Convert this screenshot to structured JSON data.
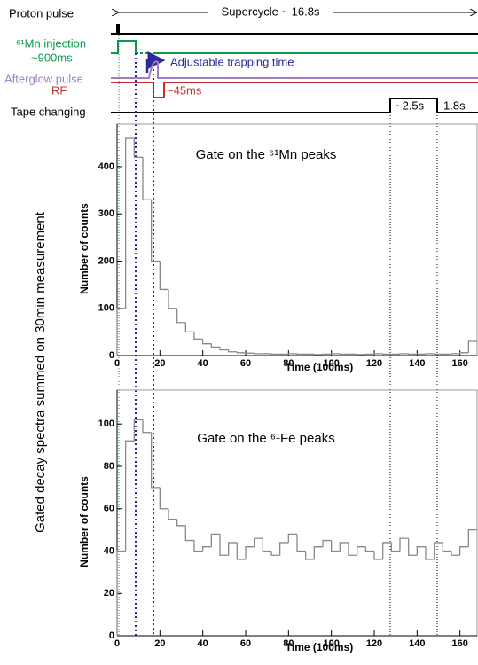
{
  "diagram": {
    "proton": "Proton pulse",
    "supercycle": "Supercycle ~ 16.8s",
    "injection": "⁶¹Mn injection",
    "injection_time": "~900ms",
    "trapping": "Adjustable trapping time",
    "afterglow": "Afterglow pulse",
    "rf": "RF",
    "rf_time": "~45ms",
    "tape": "Tape changing",
    "tape_time": "~2.5s",
    "tape_time2": "1.8s",
    "side_label": "Gated decay spectra summed on 30min measurement"
  },
  "chart_data": [
    {
      "type": "histogram",
      "title": "Gate on the ⁶¹Mn peaks",
      "x_label": "Time (100ms)",
      "y_label": "Number of counts",
      "color": "#888888",
      "bins": [
        0,
        4,
        8,
        12,
        16,
        20,
        24,
        28,
        32,
        36,
        40,
        44,
        48,
        52,
        56,
        60,
        64,
        68,
        72,
        76,
        80,
        84,
        88,
        92,
        96,
        100,
        104,
        108,
        112,
        116,
        120,
        124,
        128,
        132,
        136,
        140,
        144,
        148,
        152,
        156,
        160,
        164,
        168
      ],
      "values": [
        100,
        460,
        420,
        330,
        200,
        140,
        100,
        70,
        50,
        35,
        25,
        18,
        12,
        8,
        6,
        5,
        4,
        4,
        3,
        3,
        4,
        3,
        3,
        2,
        3,
        4,
        3,
        3,
        2,
        3,
        4,
        3,
        3,
        4,
        3,
        3,
        4,
        3,
        3,
        4,
        6,
        30
      ],
      "xlim": [
        0,
        168
      ],
      "ylim": [
        0,
        490
      ],
      "xticks": [
        0,
        20,
        40,
        60,
        80,
        100,
        120,
        140,
        160
      ],
      "yticks": [
        0,
        100,
        200,
        300,
        400
      ]
    },
    {
      "type": "histogram",
      "title": "Gate on the ⁶¹Fe peaks",
      "x_label": "Time (100ms)",
      "y_label": "Number of counts",
      "color": "#888888",
      "bins": [
        0,
        4,
        8,
        12,
        16,
        20,
        24,
        28,
        32,
        36,
        40,
        44,
        48,
        52,
        56,
        60,
        64,
        68,
        72,
        76,
        80,
        84,
        88,
        92,
        96,
        100,
        104,
        108,
        112,
        116,
        120,
        124,
        128,
        132,
        136,
        140,
        144,
        148,
        152,
        156,
        160,
        164,
        168
      ],
      "values": [
        40,
        92,
        102,
        96,
        70,
        60,
        55,
        52,
        45,
        40,
        42,
        48,
        38,
        44,
        36,
        42,
        46,
        40,
        38,
        44,
        48,
        40,
        36,
        42,
        45,
        40,
        44,
        38,
        42,
        40,
        36,
        44,
        40,
        46,
        38,
        42,
        36,
        44,
        40,
        38,
        42,
        50
      ],
      "xlim": [
        0,
        168
      ],
      "ylim": [
        0,
        116
      ],
      "xticks": [
        0,
        20,
        40,
        60,
        80,
        100,
        120,
        140,
        160
      ],
      "yticks": [
        0,
        20,
        40,
        60,
        80,
        100
      ]
    }
  ]
}
